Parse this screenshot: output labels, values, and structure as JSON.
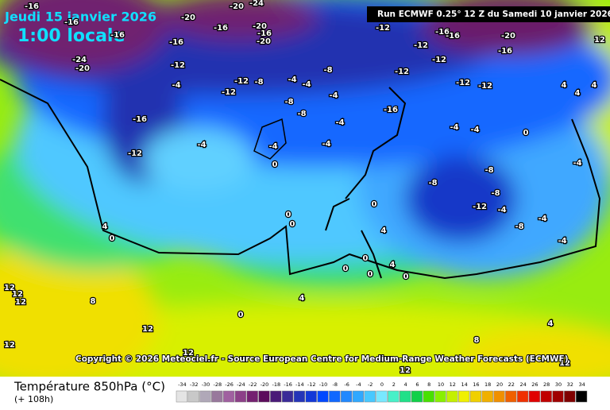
{
  "header": {
    "date": "Jeudi 15 janvier 2026",
    "time": "1:00 locale",
    "run": "Run ECMWF 0.25° 12 Z du Samedi 10 janvier 2026"
  },
  "copyright": "Copyright © 2026 Meteociel.fr - Source European Centre for Medium-Range Weather Forecasts (ECMWF)",
  "footer": {
    "title": "Température 850hPa (°C)",
    "lead": "(+ 108h)"
  },
  "contour_labels": [
    -16,
    -16,
    -16,
    -24,
    -20,
    -20,
    -20,
    -24,
    -20,
    -20,
    -16,
    -16,
    -16,
    -12,
    -16,
    -12,
    -4,
    -12,
    -12,
    -8,
    -4,
    -4,
    -8,
    -8,
    -8,
    -4,
    -4,
    -4,
    -4,
    -4,
    0,
    -12,
    -12,
    -16,
    -16,
    -12,
    -20,
    -16,
    -12,
    -16,
    -12,
    -12,
    -4,
    -4,
    0,
    -8,
    -8,
    -12,
    -8,
    -4,
    -8,
    -4,
    -4,
    -4,
    4,
    0,
    0,
    0,
    0,
    4,
    0,
    4,
    0,
    0,
    0,
    4,
    0,
    8,
    12,
    12,
    12,
    12,
    12,
    12,
    12,
    12,
    4,
    4,
    4,
    12,
    4,
    8
  ],
  "scale": {
    "ticks": [
      -34,
      -32,
      -30,
      -28,
      -26,
      -24,
      -22,
      -20,
      -18,
      -16,
      -14,
      -12,
      -10,
      -8,
      -6,
      -4,
      -2,
      0,
      2,
      4,
      6,
      8,
      10,
      12,
      14,
      16,
      18,
      20,
      22,
      24,
      26,
      28,
      30,
      32,
      34
    ],
    "colors": [
      "#e4e4e4",
      "#c8c8c8",
      "#b0a8b8",
      "#98789c",
      "#a060a0",
      "#8c4088",
      "#742070",
      "#5c0c5c",
      "#4a1a78",
      "#3a2a98",
      "#2434b8",
      "#1238d8",
      "#0048ff",
      "#1068ff",
      "#2088ff",
      "#30a8ff",
      "#48c8ff",
      "#78e8ff",
      "#48f0c8",
      "#20e088",
      "#10d048",
      "#48e000",
      "#88f000",
      "#c4f000",
      "#f0f000",
      "#f0d000",
      "#f0b000",
      "#f09000",
      "#f06000",
      "#f03000",
      "#e00000",
      "#c00000",
      "#a00000",
      "#800000",
      "#000000"
    ]
  }
}
